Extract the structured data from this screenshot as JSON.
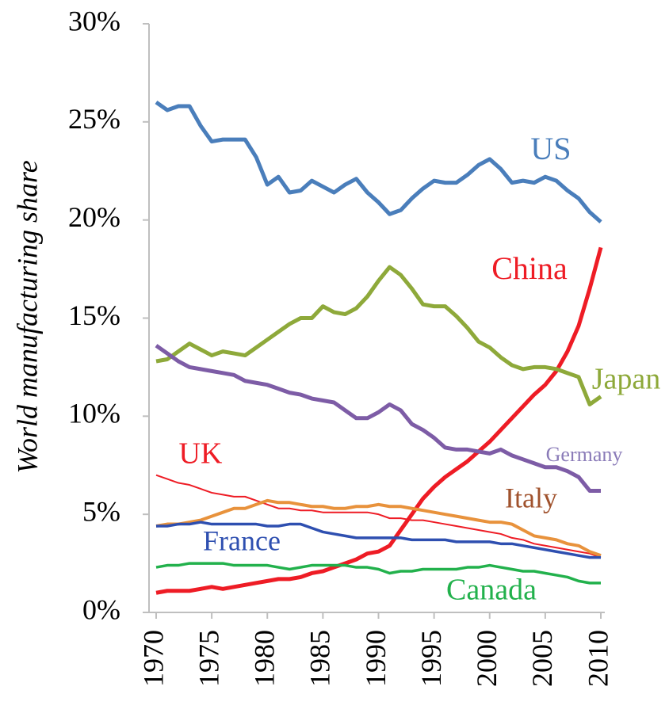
{
  "chart_data": {
    "type": "line",
    "y_label": "World manufacturing share",
    "x": [
      1970,
      1971,
      1972,
      1973,
      1974,
      1975,
      1976,
      1977,
      1978,
      1979,
      1980,
      1981,
      1982,
      1983,
      1984,
      1985,
      1986,
      1987,
      1988,
      1989,
      1990,
      1991,
      1992,
      1993,
      1994,
      1995,
      1996,
      1997,
      1998,
      1999,
      2000,
      2001,
      2002,
      2003,
      2004,
      2005,
      2006,
      2007,
      2008,
      2009,
      2010
    ],
    "xlim": [
      1970,
      2010
    ],
    "xticks": [
      1970,
      1975,
      1980,
      1985,
      1990,
      1995,
      2000,
      2005,
      2010
    ],
    "ylim": [
      0,
      30
    ],
    "yticks": [
      {
        "value": 0,
        "label": "0%"
      },
      {
        "value": 5,
        "label": "5%"
      },
      {
        "value": 10,
        "label": "10%"
      },
      {
        "value": 15,
        "label": "15%"
      },
      {
        "value": 20,
        "label": "20%"
      },
      {
        "value": 25,
        "label": "25%"
      },
      {
        "value": 30,
        "label": "30%"
      }
    ],
    "series": [
      {
        "name": "US",
        "color": "#4a7ebb",
        "values": [
          26.0,
          25.6,
          25.8,
          25.8,
          24.8,
          24.0,
          24.1,
          24.1,
          24.1,
          23.2,
          21.8,
          22.2,
          21.4,
          21.5,
          22.0,
          21.7,
          21.4,
          21.8,
          22.1,
          21.4,
          20.9,
          20.3,
          20.5,
          21.1,
          21.6,
          22.0,
          21.9,
          21.9,
          22.3,
          22.8,
          23.1,
          22.6,
          21.9,
          22.0,
          21.9,
          22.2,
          22.0,
          21.5,
          21.1,
          20.4,
          19.9
        ]
      },
      {
        "name": "China",
        "color": "#ee1c25",
        "values": [
          1.0,
          1.1,
          1.1,
          1.1,
          1.2,
          1.3,
          1.2,
          1.3,
          1.4,
          1.5,
          1.6,
          1.7,
          1.7,
          1.8,
          2.0,
          2.1,
          2.3,
          2.5,
          2.7,
          3.0,
          3.1,
          3.4,
          4.2,
          5.0,
          5.8,
          6.4,
          6.9,
          7.3,
          7.7,
          8.2,
          8.7,
          9.3,
          9.9,
          10.5,
          11.1,
          11.6,
          12.3,
          13.3,
          14.6,
          16.5,
          18.6
        ]
      },
      {
        "name": "Japan",
        "color": "#8ea93a",
        "values": [
          12.8,
          12.9,
          13.3,
          13.7,
          13.4,
          13.1,
          13.3,
          13.2,
          13.1,
          13.5,
          13.9,
          14.3,
          14.7,
          15.0,
          15.0,
          15.6,
          15.3,
          15.2,
          15.5,
          16.1,
          16.9,
          17.6,
          17.2,
          16.5,
          15.7,
          15.6,
          15.6,
          15.1,
          14.5,
          13.8,
          13.5,
          13.0,
          12.6,
          12.4,
          12.5,
          12.5,
          12.4,
          12.2,
          12.0,
          10.6,
          11.0
        ]
      },
      {
        "name": "Germany",
        "color": "#7d5ca6",
        "label_color": "#8a7bb8",
        "values": [
          13.6,
          13.2,
          12.8,
          12.5,
          12.4,
          12.3,
          12.2,
          12.1,
          11.8,
          11.7,
          11.6,
          11.4,
          11.2,
          11.1,
          10.9,
          10.8,
          10.7,
          10.3,
          9.9,
          9.9,
          10.2,
          10.6,
          10.3,
          9.6,
          9.3,
          8.9,
          8.4,
          8.3,
          8.3,
          8.2,
          8.1,
          8.3,
          8.0,
          7.8,
          7.6,
          7.4,
          7.4,
          7.2,
          6.9,
          6.2,
          6.2
        ]
      },
      {
        "name": "UK",
        "color": "#ee1c25",
        "values": [
          7.0,
          6.8,
          6.6,
          6.5,
          6.3,
          6.1,
          6.0,
          5.9,
          5.9,
          5.7,
          5.5,
          5.3,
          5.3,
          5.2,
          5.2,
          5.1,
          5.1,
          5.1,
          5.1,
          5.1,
          5.0,
          4.8,
          4.8,
          4.7,
          4.7,
          4.6,
          4.5,
          4.4,
          4.3,
          4.2,
          4.1,
          4.0,
          3.8,
          3.7,
          3.5,
          3.4,
          3.3,
          3.2,
          3.1,
          3.0,
          2.8
        ]
      },
      {
        "name": "Italy",
        "color": "#e8923c",
        "label_color": "#a0522d",
        "values": [
          4.4,
          4.5,
          4.5,
          4.6,
          4.7,
          4.9,
          5.1,
          5.3,
          5.3,
          5.5,
          5.7,
          5.6,
          5.6,
          5.5,
          5.4,
          5.4,
          5.3,
          5.3,
          5.4,
          5.4,
          5.5,
          5.4,
          5.4,
          5.3,
          5.2,
          5.1,
          5.0,
          4.9,
          4.8,
          4.7,
          4.6,
          4.6,
          4.5,
          4.2,
          3.9,
          3.8,
          3.7,
          3.5,
          3.4,
          3.1,
          2.9
        ]
      },
      {
        "name": "France",
        "color": "#2e4fb0",
        "values": [
          4.4,
          4.4,
          4.5,
          4.5,
          4.6,
          4.5,
          4.5,
          4.5,
          4.5,
          4.5,
          4.4,
          4.4,
          4.5,
          4.5,
          4.3,
          4.1,
          4.0,
          3.9,
          3.8,
          3.8,
          3.8,
          3.8,
          3.8,
          3.7,
          3.7,
          3.7,
          3.7,
          3.6,
          3.6,
          3.6,
          3.6,
          3.5,
          3.5,
          3.4,
          3.3,
          3.2,
          3.1,
          3.0,
          2.9,
          2.8,
          2.8
        ]
      },
      {
        "name": "Canada",
        "color": "#22b14c",
        "values": [
          2.3,
          2.4,
          2.4,
          2.5,
          2.5,
          2.5,
          2.5,
          2.4,
          2.4,
          2.4,
          2.4,
          2.3,
          2.2,
          2.3,
          2.4,
          2.4,
          2.4,
          2.4,
          2.3,
          2.3,
          2.2,
          2.0,
          2.1,
          2.1,
          2.2,
          2.2,
          2.2,
          2.2,
          2.3,
          2.3,
          2.4,
          2.3,
          2.2,
          2.1,
          2.1,
          2.0,
          1.9,
          1.8,
          1.6,
          1.5,
          1.5
        ]
      }
    ]
  }
}
